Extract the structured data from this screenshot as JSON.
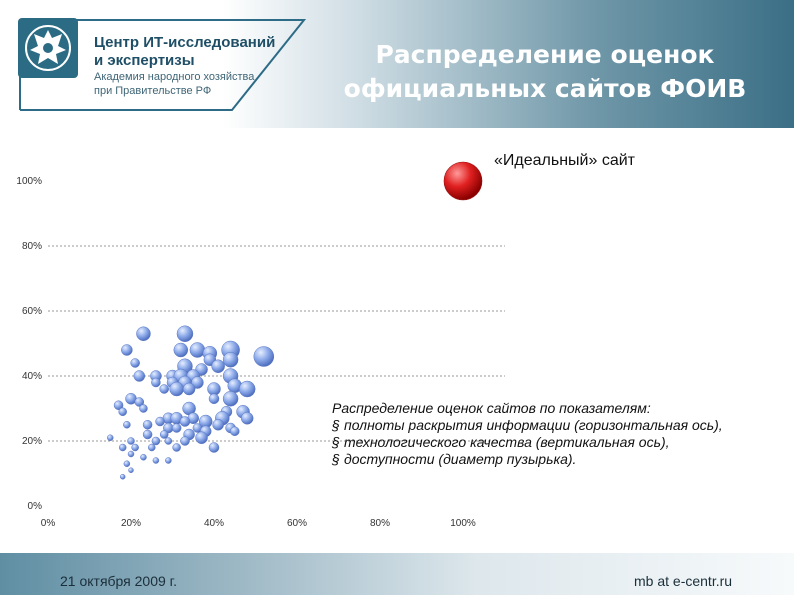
{
  "header": {
    "logo": {
      "line1": "Центр ИТ-исследований",
      "line2": "и экспертизы",
      "line3": "Академия народного хозяйства",
      "line4": "при Правительстве РФ"
    },
    "title_line1": "Распределение оценок",
    "title_line2": "официальных сайтов ФОИВ",
    "colors": {
      "brand": "#1f4f66",
      "header_dark": "#3b6f86"
    }
  },
  "chart_data": {
    "type": "scatter",
    "title": "",
    "xlabel": "",
    "ylabel": "",
    "xlim": [
      0,
      100
    ],
    "ylim": [
      0,
      100
    ],
    "x_ticks": [
      "0%",
      "20%",
      "40%",
      "60%",
      "80%",
      "100%"
    ],
    "y_ticks": [
      "0%",
      "20%",
      "40%",
      "60%",
      "80%",
      "100%"
    ],
    "grid": "horizontal dashed",
    "bubble_color": "#8aa8e8",
    "ideal_color": "#e02020",
    "ideal_point": {
      "x": 100,
      "y": 100,
      "size": 100,
      "label": "«Идеальный» сайт"
    },
    "points": [
      {
        "x": 23,
        "y": 53,
        "s": 14
      },
      {
        "x": 33,
        "y": 53,
        "s": 16
      },
      {
        "x": 19,
        "y": 48,
        "s": 11
      },
      {
        "x": 32,
        "y": 48,
        "s": 14
      },
      {
        "x": 36,
        "y": 48,
        "s": 15
      },
      {
        "x": 44,
        "y": 48,
        "s": 18
      },
      {
        "x": 39,
        "y": 47,
        "s": 14
      },
      {
        "x": 52,
        "y": 46,
        "s": 20
      },
      {
        "x": 39,
        "y": 45,
        "s": 12
      },
      {
        "x": 44,
        "y": 45,
        "s": 15
      },
      {
        "x": 21,
        "y": 44,
        "s": 9
      },
      {
        "x": 41,
        "y": 43,
        "s": 13
      },
      {
        "x": 33,
        "y": 43,
        "s": 15
      },
      {
        "x": 37,
        "y": 42,
        "s": 12
      },
      {
        "x": 22,
        "y": 40,
        "s": 11
      },
      {
        "x": 26,
        "y": 40,
        "s": 11
      },
      {
        "x": 30,
        "y": 40,
        "s": 12
      },
      {
        "x": 32,
        "y": 40,
        "s": 14
      },
      {
        "x": 35,
        "y": 40,
        "s": 13
      },
      {
        "x": 44,
        "y": 40,
        "s": 15
      },
      {
        "x": 26,
        "y": 38,
        "s": 9
      },
      {
        "x": 30,
        "y": 38,
        "s": 11
      },
      {
        "x": 33,
        "y": 38,
        "s": 13
      },
      {
        "x": 36,
        "y": 38,
        "s": 12
      },
      {
        "x": 31,
        "y": 36,
        "s": 14
      },
      {
        "x": 34,
        "y": 36,
        "s": 12
      },
      {
        "x": 28,
        "y": 36,
        "s": 9
      },
      {
        "x": 40,
        "y": 36,
        "s": 13
      },
      {
        "x": 45,
        "y": 37,
        "s": 14
      },
      {
        "x": 48,
        "y": 36,
        "s": 16
      },
      {
        "x": 40,
        "y": 33,
        "s": 10
      },
      {
        "x": 44,
        "y": 33,
        "s": 15
      },
      {
        "x": 20,
        "y": 33,
        "s": 11
      },
      {
        "x": 22,
        "y": 32,
        "s": 9
      },
      {
        "x": 17,
        "y": 31,
        "s": 9
      },
      {
        "x": 23,
        "y": 30,
        "s": 8
      },
      {
        "x": 34,
        "y": 30,
        "s": 13
      },
      {
        "x": 43,
        "y": 29,
        "s": 11
      },
      {
        "x": 47,
        "y": 29,
        "s": 13
      },
      {
        "x": 18,
        "y": 29,
        "s": 8
      },
      {
        "x": 29,
        "y": 27,
        "s": 11
      },
      {
        "x": 31,
        "y": 27,
        "s": 12
      },
      {
        "x": 35,
        "y": 27,
        "s": 11
      },
      {
        "x": 42,
        "y": 27,
        "s": 14
      },
      {
        "x": 48,
        "y": 27,
        "s": 12
      },
      {
        "x": 38,
        "y": 26,
        "s": 13
      },
      {
        "x": 27,
        "y": 26,
        "s": 9
      },
      {
        "x": 33,
        "y": 26,
        "s": 10
      },
      {
        "x": 41,
        "y": 25,
        "s": 11
      },
      {
        "x": 19,
        "y": 25,
        "s": 7
      },
      {
        "x": 24,
        "y": 25,
        "s": 9
      },
      {
        "x": 44,
        "y": 24,
        "s": 10
      },
      {
        "x": 29,
        "y": 24,
        "s": 10
      },
      {
        "x": 31,
        "y": 24,
        "s": 9
      },
      {
        "x": 36,
        "y": 24,
        "s": 9
      },
      {
        "x": 38,
        "y": 23,
        "s": 11
      },
      {
        "x": 45,
        "y": 23,
        "s": 9
      },
      {
        "x": 24,
        "y": 22,
        "s": 9
      },
      {
        "x": 28,
        "y": 22,
        "s": 8
      },
      {
        "x": 34,
        "y": 22,
        "s": 11
      },
      {
        "x": 37,
        "y": 21,
        "s": 12
      },
      {
        "x": 15,
        "y": 21,
        "s": 6
      },
      {
        "x": 20,
        "y": 20,
        "s": 7
      },
      {
        "x": 26,
        "y": 20,
        "s": 8
      },
      {
        "x": 29,
        "y": 20,
        "s": 7
      },
      {
        "x": 33,
        "y": 20,
        "s": 9
      },
      {
        "x": 18,
        "y": 18,
        "s": 7
      },
      {
        "x": 21,
        "y": 18,
        "s": 7
      },
      {
        "x": 25,
        "y": 18,
        "s": 7
      },
      {
        "x": 31,
        "y": 18,
        "s": 8
      },
      {
        "x": 40,
        "y": 18,
        "s": 10
      },
      {
        "x": 20,
        "y": 16,
        "s": 6
      },
      {
        "x": 23,
        "y": 15,
        "s": 6
      },
      {
        "x": 26,
        "y": 14,
        "s": 6
      },
      {
        "x": 29,
        "y": 14,
        "s": 6
      },
      {
        "x": 19,
        "y": 13,
        "s": 6
      },
      {
        "x": 20,
        "y": 11,
        "s": 5
      },
      {
        "x": 18,
        "y": 9,
        "s": 5
      }
    ]
  },
  "description": {
    "heading": "Распределение оценок сайтов по показателям:",
    "items": [
      "полноты раскрытия информации (горизонтальная ось),",
      "технологического качества (вертикальная ось),",
      "доступности (диаметр пузырька)."
    ],
    "bullet": "§"
  },
  "footer": {
    "date": "21 октября 2009 г.",
    "site": "mb at e-centr.ru"
  }
}
